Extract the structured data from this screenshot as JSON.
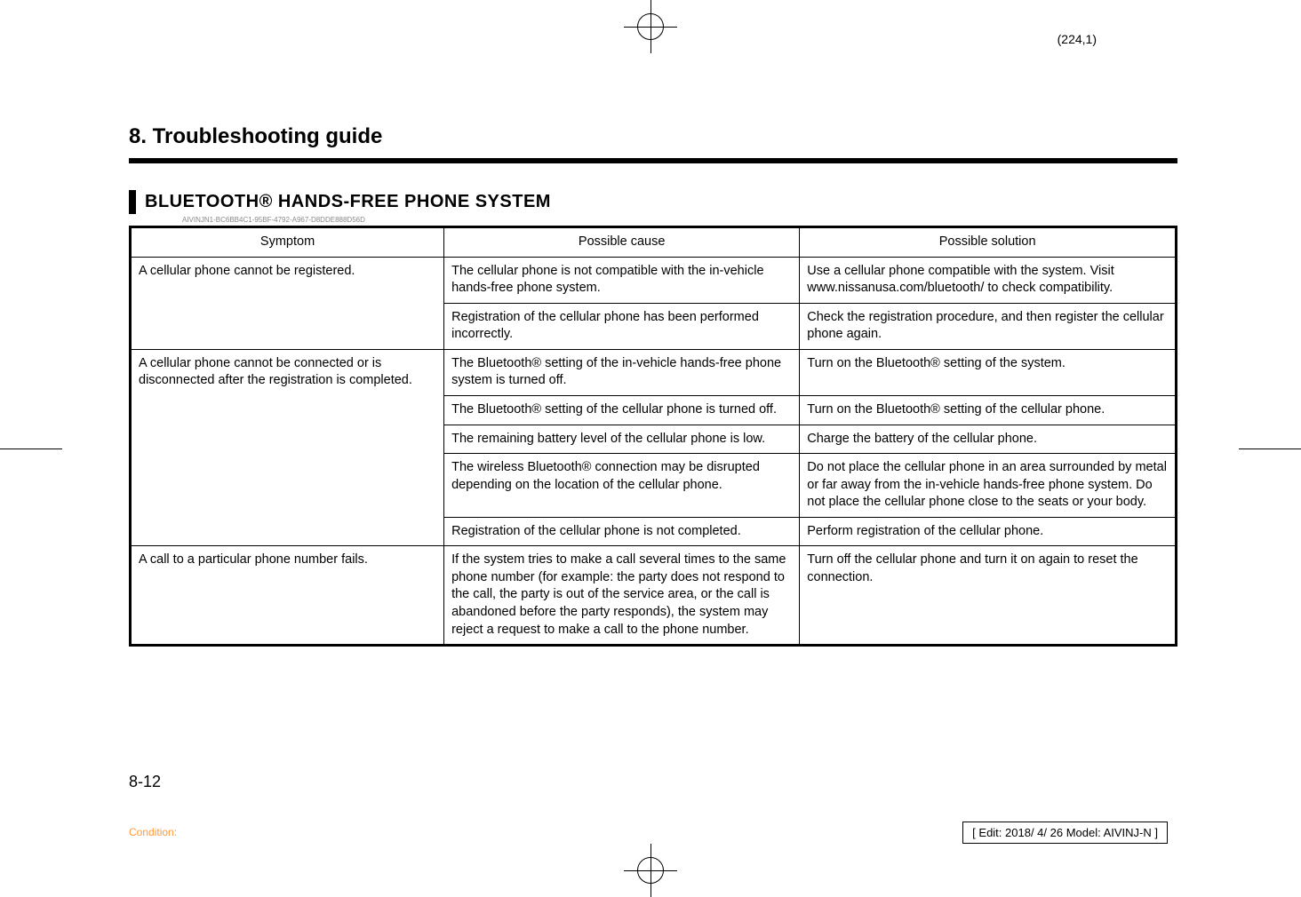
{
  "page_coord": "(224,1)",
  "chapter_title": "8. Troubleshooting guide",
  "section_title": "BLUETOOTH® HANDS-FREE PHONE SYSTEM",
  "tiny_id": "AIVINJN1-BC6BB4C1-95BF-4792-A967-D8DDE888D56D",
  "columns": [
    "Symptom",
    "Possible cause",
    "Possible solution"
  ],
  "rows": [
    {
      "symptom": "A cellular phone cannot be registered.",
      "symptom_rowspan": 2,
      "cause": "The cellular phone is not compatible with the in-vehicle hands-free phone system.",
      "solution": "Use a cellular phone compatible with the system. Visit www.nissanusa.com/bluetooth/ to check compatibility."
    },
    {
      "cause": "Registration of the cellular phone has been performed incorrectly.",
      "solution": "Check the registration procedure, and then register the cellular phone again."
    },
    {
      "symptom": "A cellular phone cannot be connected or is disconnected after the registration is completed.",
      "symptom_rowspan": 5,
      "cause": "The Bluetooth® setting of the in-vehicle hands-free phone system is turned off.",
      "solution": "Turn on the Bluetooth® setting of the system."
    },
    {
      "cause": "The Bluetooth® setting of the cellular phone is turned off.",
      "solution": "Turn on the Bluetooth® setting of the cellular phone."
    },
    {
      "cause": "The remaining battery level of the cellular phone is low.",
      "solution": "Charge the battery of the cellular phone."
    },
    {
      "cause": "The wireless Bluetooth® connection may be disrupted depending on the location of the cellular phone.",
      "solution": "Do not place the cellular phone in an area surrounded by metal or far away from the in-vehicle hands-free phone system. Do not place the cellular phone close to the seats or your body."
    },
    {
      "cause": "Registration of the cellular phone is not completed.",
      "solution": "Perform registration of the cellular phone."
    },
    {
      "symptom": "A call to a particular phone number fails.",
      "symptom_rowspan": 1,
      "cause": "If the system tries to make a call several times to the same phone number (for example: the party does not respond to the call, the party is out of the service area, or the call is abandoned before the party responds), the system may reject a request to make a call to the phone number.",
      "solution": "Turn off the cellular phone and turn it on again to reset the connection."
    }
  ],
  "page_number": "8-12",
  "condition_label": "Condition:",
  "edit_info": "[ Edit: 2018/ 4/ 26   Model: AIVINJ-N ]",
  "colors": {
    "text": "#000000",
    "bg": "#ffffff",
    "condition": "#ff9a3c",
    "tiny_id": "#888888"
  }
}
